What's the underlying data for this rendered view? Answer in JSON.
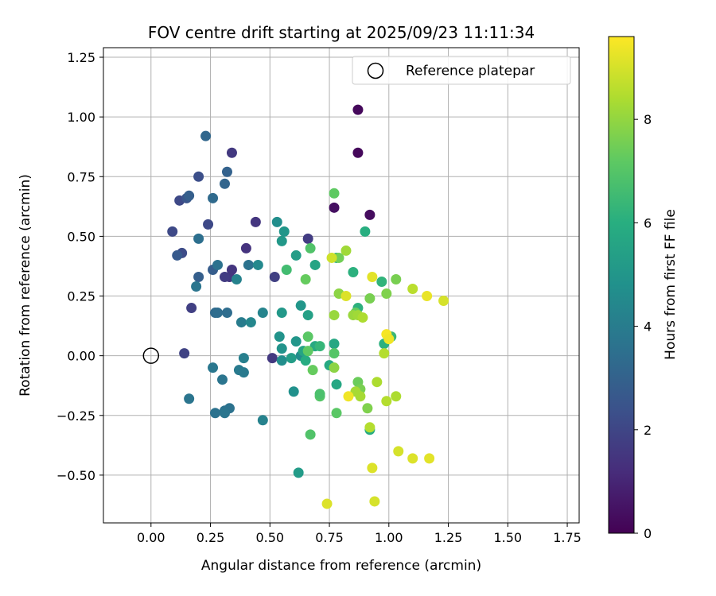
{
  "chart_data": {
    "type": "scatter",
    "title": "FOV centre drift starting at 2025/09/23 11:11:34",
    "xlabel": "Angular distance from reference (arcmin)",
    "ylabel": "Rotation from reference (arcmin)",
    "xlim": [
      -0.2,
      1.8
    ],
    "ylim": [
      -0.7,
      1.29
    ],
    "x_ticks": [
      0.0,
      0.25,
      0.5,
      0.75,
      1.0,
      1.25,
      1.5,
      1.75
    ],
    "x_tick_labels": [
      "0.00",
      "0.25",
      "0.50",
      "0.75",
      "1.00",
      "1.25",
      "1.50",
      "1.75"
    ],
    "y_ticks": [
      -0.5,
      -0.25,
      0.0,
      0.25,
      0.5,
      0.75,
      1.0,
      1.25
    ],
    "y_tick_labels": [
      "−0.50",
      "−0.25",
      "0.00",
      "0.25",
      "0.50",
      "0.75",
      "1.00",
      "1.25"
    ],
    "grid": true,
    "legend": {
      "position": "top-right",
      "label": "Reference platepar"
    },
    "reference_point": {
      "x": 0.0,
      "y": 0.0
    },
    "colorbar": {
      "label": "Hours from first FF file",
      "colormap": "viridis",
      "range": [
        0,
        9.6
      ],
      "ticks": [
        0,
        2,
        4,
        6,
        8
      ],
      "tick_labels": [
        "0",
        "2",
        "4",
        "6",
        "8"
      ]
    },
    "points": [
      {
        "x": 0.87,
        "y": 1.03,
        "h": 0.2
      },
      {
        "x": 0.87,
        "y": 0.85,
        "h": 0.2
      },
      {
        "x": 0.92,
        "y": 0.59,
        "h": 0.3
      },
      {
        "x": 0.77,
        "y": 0.62,
        "h": 0.4
      },
      {
        "x": 0.34,
        "y": 0.85,
        "h": 1.6
      },
      {
        "x": 0.44,
        "y": 0.56,
        "h": 1.5
      },
      {
        "x": 0.66,
        "y": 0.49,
        "h": 1.7
      },
      {
        "x": 0.4,
        "y": 0.45,
        "h": 1.4
      },
      {
        "x": 0.34,
        "y": 0.36,
        "h": 1.5
      },
      {
        "x": 0.33,
        "y": 0.33,
        "h": 1.5
      },
      {
        "x": 0.31,
        "y": 0.33,
        "h": 1.7
      },
      {
        "x": 0.52,
        "y": 0.33,
        "h": 1.8
      },
      {
        "x": 0.51,
        "y": -0.01,
        "h": 1.6
      },
      {
        "x": 0.14,
        "y": 0.01,
        "h": 1.9
      },
      {
        "x": 0.17,
        "y": 0.2,
        "h": 1.8
      },
      {
        "x": 0.09,
        "y": 0.52,
        "h": 2.1
      },
      {
        "x": 0.13,
        "y": 0.43,
        "h": 2.2
      },
      {
        "x": 0.12,
        "y": 0.65,
        "h": 2.1
      },
      {
        "x": 0.24,
        "y": 0.55,
        "h": 2.1
      },
      {
        "x": 0.2,
        "y": 0.75,
        "h": 2.3
      },
      {
        "x": 0.15,
        "y": 0.66,
        "h": 2.5
      },
      {
        "x": 0.16,
        "y": 0.67,
        "h": 2.9
      },
      {
        "x": 0.11,
        "y": 0.42,
        "h": 2.7
      },
      {
        "x": 0.2,
        "y": 0.33,
        "h": 2.9
      },
      {
        "x": 0.26,
        "y": 0.36,
        "h": 2.8
      },
      {
        "x": 0.32,
        "y": 0.77,
        "h": 3.0
      },
      {
        "x": 0.23,
        "y": 0.92,
        "h": 3.2
      },
      {
        "x": 0.31,
        "y": 0.72,
        "h": 3.1
      },
      {
        "x": 0.26,
        "y": 0.66,
        "h": 3.3
      },
      {
        "x": 0.2,
        "y": 0.49,
        "h": 3.5
      },
      {
        "x": 0.19,
        "y": 0.29,
        "h": 3.7
      },
      {
        "x": 0.28,
        "y": 0.38,
        "h": 3.6
      },
      {
        "x": 0.27,
        "y": 0.18,
        "h": 3.3
      },
      {
        "x": 0.28,
        "y": 0.18,
        "h": 3.4
      },
      {
        "x": 0.32,
        "y": 0.18,
        "h": 3.4
      },
      {
        "x": 0.41,
        "y": 0.38,
        "h": 3.6
      },
      {
        "x": 0.36,
        "y": 0.32,
        "h": 4.2
      },
      {
        "x": 0.38,
        "y": 0.14,
        "h": 4.0
      },
      {
        "x": 0.42,
        "y": 0.14,
        "h": 4.4
      },
      {
        "x": 0.47,
        "y": 0.18,
        "h": 4.3
      },
      {
        "x": 0.45,
        "y": 0.38,
        "h": 4.5
      },
      {
        "x": 0.39,
        "y": -0.01,
        "h": 4.1
      },
      {
        "x": 0.37,
        "y": -0.06,
        "h": 3.9
      },
      {
        "x": 0.39,
        "y": -0.07,
        "h": 3.9
      },
      {
        "x": 0.26,
        "y": -0.05,
        "h": 3.8
      },
      {
        "x": 0.3,
        "y": -0.1,
        "h": 3.7
      },
      {
        "x": 0.16,
        "y": -0.18,
        "h": 3.7
      },
      {
        "x": 0.27,
        "y": -0.24,
        "h": 3.6
      },
      {
        "x": 0.31,
        "y": -0.23,
        "h": 3.6
      },
      {
        "x": 0.33,
        "y": -0.22,
        "h": 3.6
      },
      {
        "x": 0.31,
        "y": -0.24,
        "h": 3.7
      },
      {
        "x": 0.47,
        "y": -0.27,
        "h": 4.2
      },
      {
        "x": 0.53,
        "y": 0.56,
        "h": 4.7
      },
      {
        "x": 0.56,
        "y": 0.52,
        "h": 5.0
      },
      {
        "x": 0.55,
        "y": 0.48,
        "h": 5.1
      },
      {
        "x": 0.54,
        "y": 0.08,
        "h": 4.9
      },
      {
        "x": 0.55,
        "y": 0.03,
        "h": 4.9
      },
      {
        "x": 0.55,
        "y": -0.02,
        "h": 4.7
      },
      {
        "x": 0.55,
        "y": 0.18,
        "h": 5.1
      },
      {
        "x": 0.59,
        "y": -0.01,
        "h": 5.3
      },
      {
        "x": 0.61,
        "y": 0.06,
        "h": 5.0
      },
      {
        "x": 0.63,
        "y": 0.0,
        "h": 4.6
      },
      {
        "x": 0.63,
        "y": 0.21,
        "h": 5.0
      },
      {
        "x": 0.6,
        "y": -0.15,
        "h": 4.8
      },
      {
        "x": 0.62,
        "y": -0.49,
        "h": 5.2
      },
      {
        "x": 0.61,
        "y": 0.42,
        "h": 5.3
      },
      {
        "x": 0.64,
        "y": 0.02,
        "h": 5.6
      },
      {
        "x": 0.66,
        "y": 0.17,
        "h": 5.4
      },
      {
        "x": 0.69,
        "y": 0.38,
        "h": 5.6
      },
      {
        "x": 0.69,
        "y": 0.04,
        "h": 5.8
      },
      {
        "x": 0.71,
        "y": 0.04,
        "h": 6.3
      },
      {
        "x": 0.65,
        "y": -0.02,
        "h": 5.9
      },
      {
        "x": 0.75,
        "y": -0.04,
        "h": 5.8
      },
      {
        "x": 0.77,
        "y": 0.05,
        "h": 5.7
      },
      {
        "x": 0.78,
        "y": -0.12,
        "h": 5.7
      },
      {
        "x": 0.78,
        "y": 0.41,
        "h": 5.9
      },
      {
        "x": 0.85,
        "y": 0.35,
        "h": 6.1
      },
      {
        "x": 0.87,
        "y": 0.2,
        "h": 6.1
      },
      {
        "x": 0.9,
        "y": 0.52,
        "h": 6.0
      },
      {
        "x": 0.92,
        "y": -0.31,
        "h": 5.9
      },
      {
        "x": 0.97,
        "y": 0.31,
        "h": 6.2
      },
      {
        "x": 0.98,
        "y": 0.05,
        "h": 6.1
      },
      {
        "x": 1.01,
        "y": 0.08,
        "h": 6.4
      },
      {
        "x": 0.57,
        "y": 0.36,
        "h": 6.6
      },
      {
        "x": 0.67,
        "y": 0.45,
        "h": 6.9
      },
      {
        "x": 0.77,
        "y": 0.68,
        "h": 7.2
      },
      {
        "x": 0.65,
        "y": 0.32,
        "h": 7.3
      },
      {
        "x": 0.66,
        "y": 0.08,
        "h": 7.1
      },
      {
        "x": 0.66,
        "y": 0.02,
        "h": 7.2
      },
      {
        "x": 0.68,
        "y": -0.06,
        "h": 7.3
      },
      {
        "x": 0.71,
        "y": -0.17,
        "h": 7.0
      },
      {
        "x": 0.71,
        "y": -0.16,
        "h": 6.8
      },
      {
        "x": 0.67,
        "y": -0.33,
        "h": 6.9
      },
      {
        "x": 0.77,
        "y": 0.01,
        "h": 7.0
      },
      {
        "x": 0.78,
        "y": -0.24,
        "h": 7.1
      },
      {
        "x": 0.86,
        "y": 0.18,
        "h": 7.3
      },
      {
        "x": 0.87,
        "y": -0.11,
        "h": 7.4
      },
      {
        "x": 0.88,
        "y": -0.14,
        "h": 7.6
      },
      {
        "x": 0.91,
        "y": -0.22,
        "h": 7.7
      },
      {
        "x": 0.92,
        "y": 0.24,
        "h": 7.6
      },
      {
        "x": 0.99,
        "y": 0.26,
        "h": 7.7
      },
      {
        "x": 1.03,
        "y": 0.32,
        "h": 7.6
      },
      {
        "x": 0.79,
        "y": 0.41,
        "h": 7.5
      },
      {
        "x": 0.79,
        "y": 0.26,
        "h": 7.9
      },
      {
        "x": 0.77,
        "y": -0.05,
        "h": 7.9
      },
      {
        "x": 0.77,
        "y": 0.17,
        "h": 8.1
      },
      {
        "x": 0.82,
        "y": 0.44,
        "h": 8.2
      },
      {
        "x": 0.85,
        "y": 0.17,
        "h": 8.1
      },
      {
        "x": 0.87,
        "y": 0.17,
        "h": 8.2
      },
      {
        "x": 0.89,
        "y": 0.16,
        "h": 8.4
      },
      {
        "x": 0.86,
        "y": -0.15,
        "h": 8.3
      },
      {
        "x": 0.88,
        "y": -0.17,
        "h": 8.3
      },
      {
        "x": 0.92,
        "y": -0.3,
        "h": 8.5
      },
      {
        "x": 0.98,
        "y": 0.01,
        "h": 8.5
      },
      {
        "x": 0.95,
        "y": -0.11,
        "h": 8.4
      },
      {
        "x": 0.99,
        "y": -0.19,
        "h": 8.5
      },
      {
        "x": 1.03,
        "y": -0.17,
        "h": 8.4
      },
      {
        "x": 1.1,
        "y": 0.28,
        "h": 8.6
      },
      {
        "x": 0.76,
        "y": 0.41,
        "h": 8.9
      },
      {
        "x": 0.82,
        "y": 0.25,
        "h": 9.1
      },
      {
        "x": 0.83,
        "y": -0.17,
        "h": 9.4
      },
      {
        "x": 0.93,
        "y": 0.33,
        "h": 9.2
      },
      {
        "x": 0.99,
        "y": 0.09,
        "h": 9.5
      },
      {
        "x": 1.0,
        "y": 0.07,
        "h": 9.4
      },
      {
        "x": 1.16,
        "y": 0.25,
        "h": 9.3
      },
      {
        "x": 1.23,
        "y": 0.23,
        "h": 9.0
      },
      {
        "x": 0.93,
        "y": -0.47,
        "h": 9.1
      },
      {
        "x": 0.94,
        "y": -0.61,
        "h": 9.0
      },
      {
        "x": 1.04,
        "y": -0.4,
        "h": 9.0
      },
      {
        "x": 1.1,
        "y": -0.43,
        "h": 9.1
      },
      {
        "x": 1.17,
        "y": -0.43,
        "h": 9.2
      },
      {
        "x": 0.74,
        "y": -0.62,
        "h": 9.1
      }
    ]
  }
}
